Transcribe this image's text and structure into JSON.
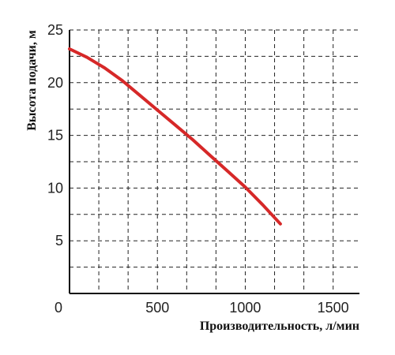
{
  "chart_data": {
    "type": "line",
    "title": "",
    "xlabel": "Производительность, л/мин",
    "ylabel": "Высота подачи, м",
    "xlim": [
      0,
      1650
    ],
    "ylim": [
      0,
      25
    ],
    "x_ticks": [
      0,
      500,
      1000,
      1500
    ],
    "y_ticks": [
      5,
      10,
      15,
      20,
      25
    ],
    "grid": true,
    "grid_x_step": 166.7,
    "grid_y_step": 2.5,
    "series": [
      {
        "color": "#d62828",
        "x": [
          0,
          100,
          200,
          300,
          400,
          500,
          600,
          700,
          800,
          900,
          1000,
          1100,
          1200
        ],
        "y": [
          23.2,
          22.4,
          21.4,
          20.2,
          18.8,
          17.4,
          16.0,
          14.6,
          13.1,
          11.6,
          10.1,
          8.4,
          6.6
        ]
      }
    ]
  }
}
